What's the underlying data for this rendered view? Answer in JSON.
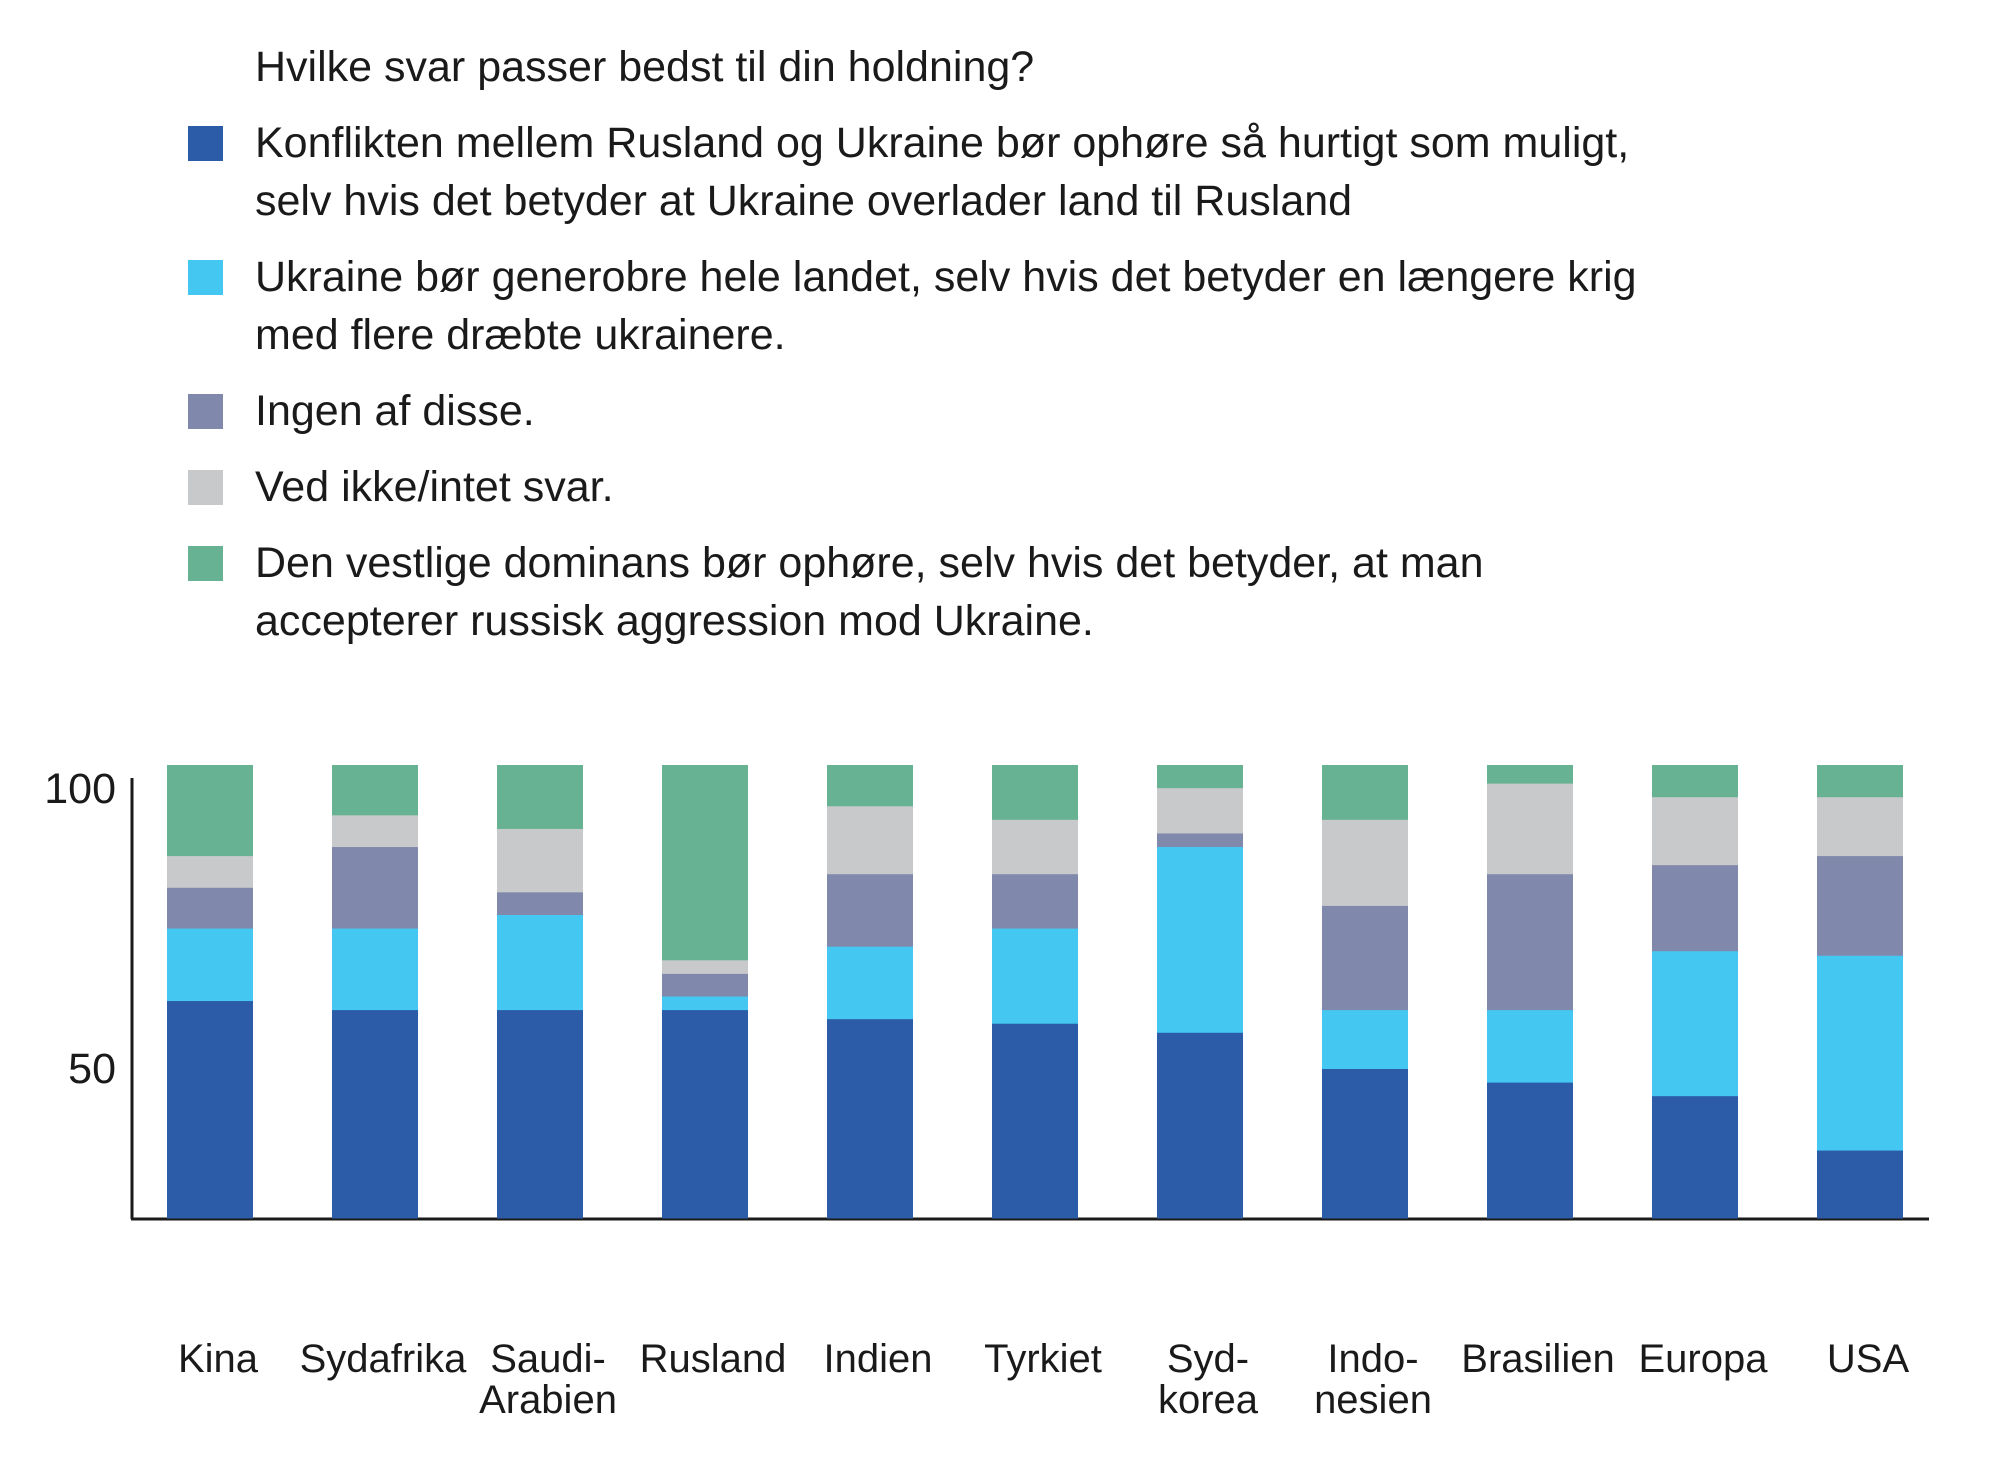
{
  "chart_data": {
    "type": "bar",
    "stacked": true,
    "title": "Hvilke svar passer bedst til din holdning?",
    "xlabel": "",
    "ylabel": "",
    "ylim": [
      0,
      100
    ],
    "yticks": [
      "100",
      "50"
    ],
    "grid": false,
    "legend_position": "top",
    "categories": [
      [
        "Kina"
      ],
      [
        "Sydafrika"
      ],
      [
        "Saudi-",
        "Arabien"
      ],
      [
        "Rusland"
      ],
      [
        "Indien"
      ],
      [
        "Tyrkiet"
      ],
      [
        "Syd-",
        "korea"
      ],
      [
        "Indo-",
        "nesien"
      ],
      [
        "Brasilien"
      ],
      [
        "Europa"
      ],
      [
        "USA"
      ]
    ],
    "series": [
      {
        "name": "Konflikten mellem Rusland og Ukraine bør ophøre så hurtigt som muligt, selv hvis det betyder at Ukraine overlader land til Rusland",
        "color": "#2c5ca8",
        "values": [
          48,
          46,
          46,
          46,
          44,
          43,
          41,
          33,
          30,
          27,
          15
        ]
      },
      {
        "name": "Ukraine bør generobre hele landet, selv hvis det betyder en længere krig med flere dræbte ukrainere.",
        "color": "#44c8f2",
        "values": [
          16,
          18,
          21,
          3,
          16,
          21,
          41,
          13,
          16,
          32,
          43
        ]
      },
      {
        "name": "Ingen af disse.",
        "color": "#8088ab",
        "values": [
          9,
          18,
          5,
          5,
          16,
          12,
          3,
          23,
          30,
          19,
          22
        ]
      },
      {
        "name": "Ved ikke/intet svar.",
        "color": "#c8c9cb",
        "values": [
          7,
          7,
          14,
          3,
          15,
          12,
          10,
          19,
          20,
          15,
          13
        ]
      },
      {
        "name": "Den vestlige dominans bør ophøre, selv hvis det betyder, at man accepterer russisk aggression mod Ukraine.",
        "color": "#68b294",
        "values": [
          20,
          11,
          14,
          43,
          9,
          12,
          5,
          12,
          4,
          7,
          7
        ]
      }
    ]
  },
  "legend": {
    "title": "Hvilke svar passer bedst til din holdning?",
    "items": [
      {
        "lines": [
          "Konflikten mellem Rusland og Ukraine bør ophøre så hurtigt som muligt,",
          "selv hvis det betyder at Ukraine overlader land til Rusland"
        ]
      },
      {
        "lines": [
          "Ukraine bør generobre hele landet, selv hvis det betyder en længere krig",
          "med flere dræbte ukrainere."
        ]
      },
      {
        "lines": [
          "Ingen af disse."
        ]
      },
      {
        "lines": [
          "Ved ikke/intet svar."
        ]
      },
      {
        "lines": [
          "Den vestlige dominans bør ophøre, selv hvis det betyder, at man",
          "accepterer russisk aggression mod Ukraine."
        ]
      }
    ]
  }
}
